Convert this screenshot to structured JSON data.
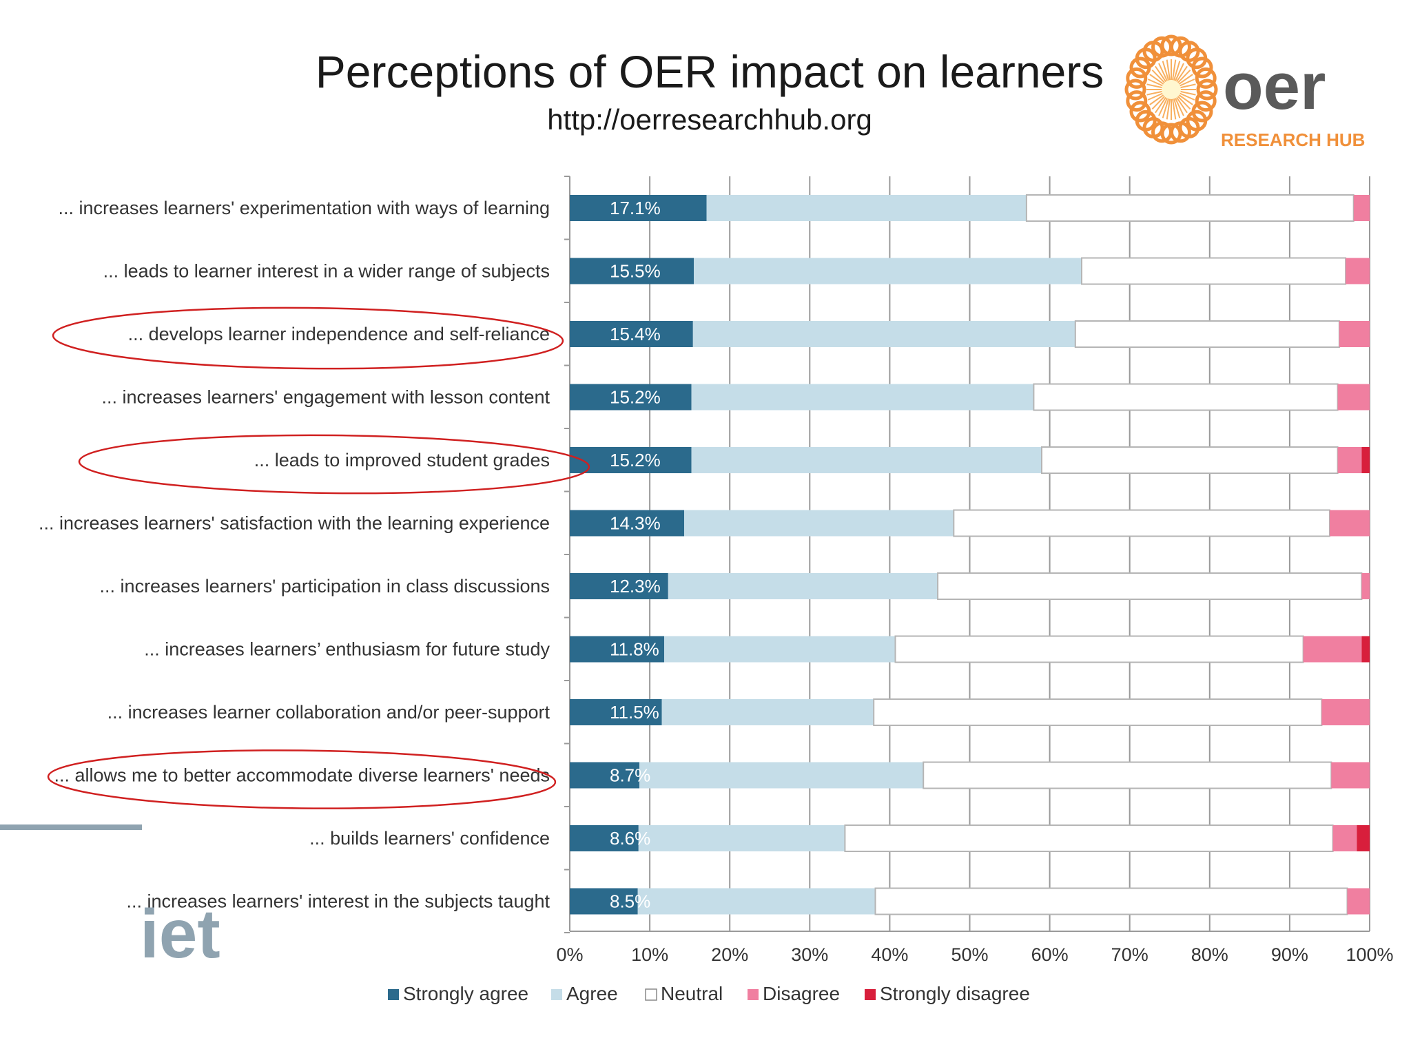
{
  "header": {
    "title": "Perceptions of OER impact on learners",
    "subtitle": "http://oerresearchhub.org"
  },
  "logos": {
    "oer_word": "oer",
    "oer_tagline": "RESEARCH HUB",
    "iet_word": "iet"
  },
  "colors": {
    "strongly_agree": "#2b6a8c",
    "agree": "#c5dde8",
    "neutral": "#ffffff",
    "disagree": "#f07fa0",
    "strongly_disagree": "#d81f3c",
    "oer_orange": "#f0903a",
    "oer_gray": "#5a5a5a",
    "iet_gray": "#8fa3b0",
    "highlight_ring": "#d02020"
  },
  "chart_data": {
    "type": "bar",
    "orientation": "horizontal",
    "stacked": "percent",
    "title": "",
    "xlabel": "",
    "ylabel": "",
    "xlim": [
      0,
      100
    ],
    "x_ticks": [
      "0%",
      "10%",
      "20%",
      "30%",
      "40%",
      "50%",
      "60%",
      "70%",
      "80%",
      "90%",
      "100%"
    ],
    "grid": true,
    "legend_position": "bottom",
    "categories": [
      "... increases learners' experimentation with ways of learning",
      "... leads to learner interest in a wider range of subjects",
      "... develops learner independence and self-reliance",
      "... increases learners' engagement with lesson content",
      "... leads to improved student grades",
      "... increases learners' satisfaction with the learning experience",
      "... increases learners' participation in class discussions",
      "... increases learners’ enthusiasm for future study",
      "... increases learner collaboration and/or peer-support",
      "... allows me to better accommodate diverse learners' needs",
      "... builds learners' confidence",
      "... increases learners' interest in the subjects taught"
    ],
    "series": [
      {
        "name": "Strongly agree",
        "values": [
          17.1,
          15.5,
          15.4,
          15.2,
          15.2,
          14.3,
          12.3,
          11.8,
          11.5,
          8.7,
          8.6,
          8.5
        ]
      },
      {
        "name": "Agree",
        "values": [
          40.0,
          48.5,
          47.8,
          42.8,
          43.8,
          33.7,
          33.7,
          28.9,
          26.5,
          35.5,
          25.8,
          29.7
        ]
      },
      {
        "name": "Neutral",
        "values": [
          40.9,
          33.0,
          33.0,
          38.0,
          37.0,
          47.0,
          53.0,
          51.0,
          56.0,
          51.0,
          61.0,
          59.0
        ]
      },
      {
        "name": "Disagree",
        "values": [
          2.0,
          3.0,
          3.8,
          4.0,
          3.0,
          5.0,
          1.0,
          7.3,
          6.0,
          4.8,
          3.0,
          2.8
        ]
      },
      {
        "name": "Strongly disagree",
        "values": [
          0.0,
          0.0,
          0.0,
          0.0,
          1.0,
          0.0,
          0.0,
          1.0,
          0.0,
          0.0,
          1.6,
          0.0
        ]
      }
    ],
    "data_labels": [
      "17.1%",
      "15.5%",
      "15.4%",
      "15.2%",
      "15.2%",
      "14.3%",
      "12.3%",
      "11.8%",
      "11.5%",
      "8.7%",
      "8.6%",
      "8.5%"
    ],
    "highlighted_categories": [
      2,
      4,
      9
    ]
  }
}
